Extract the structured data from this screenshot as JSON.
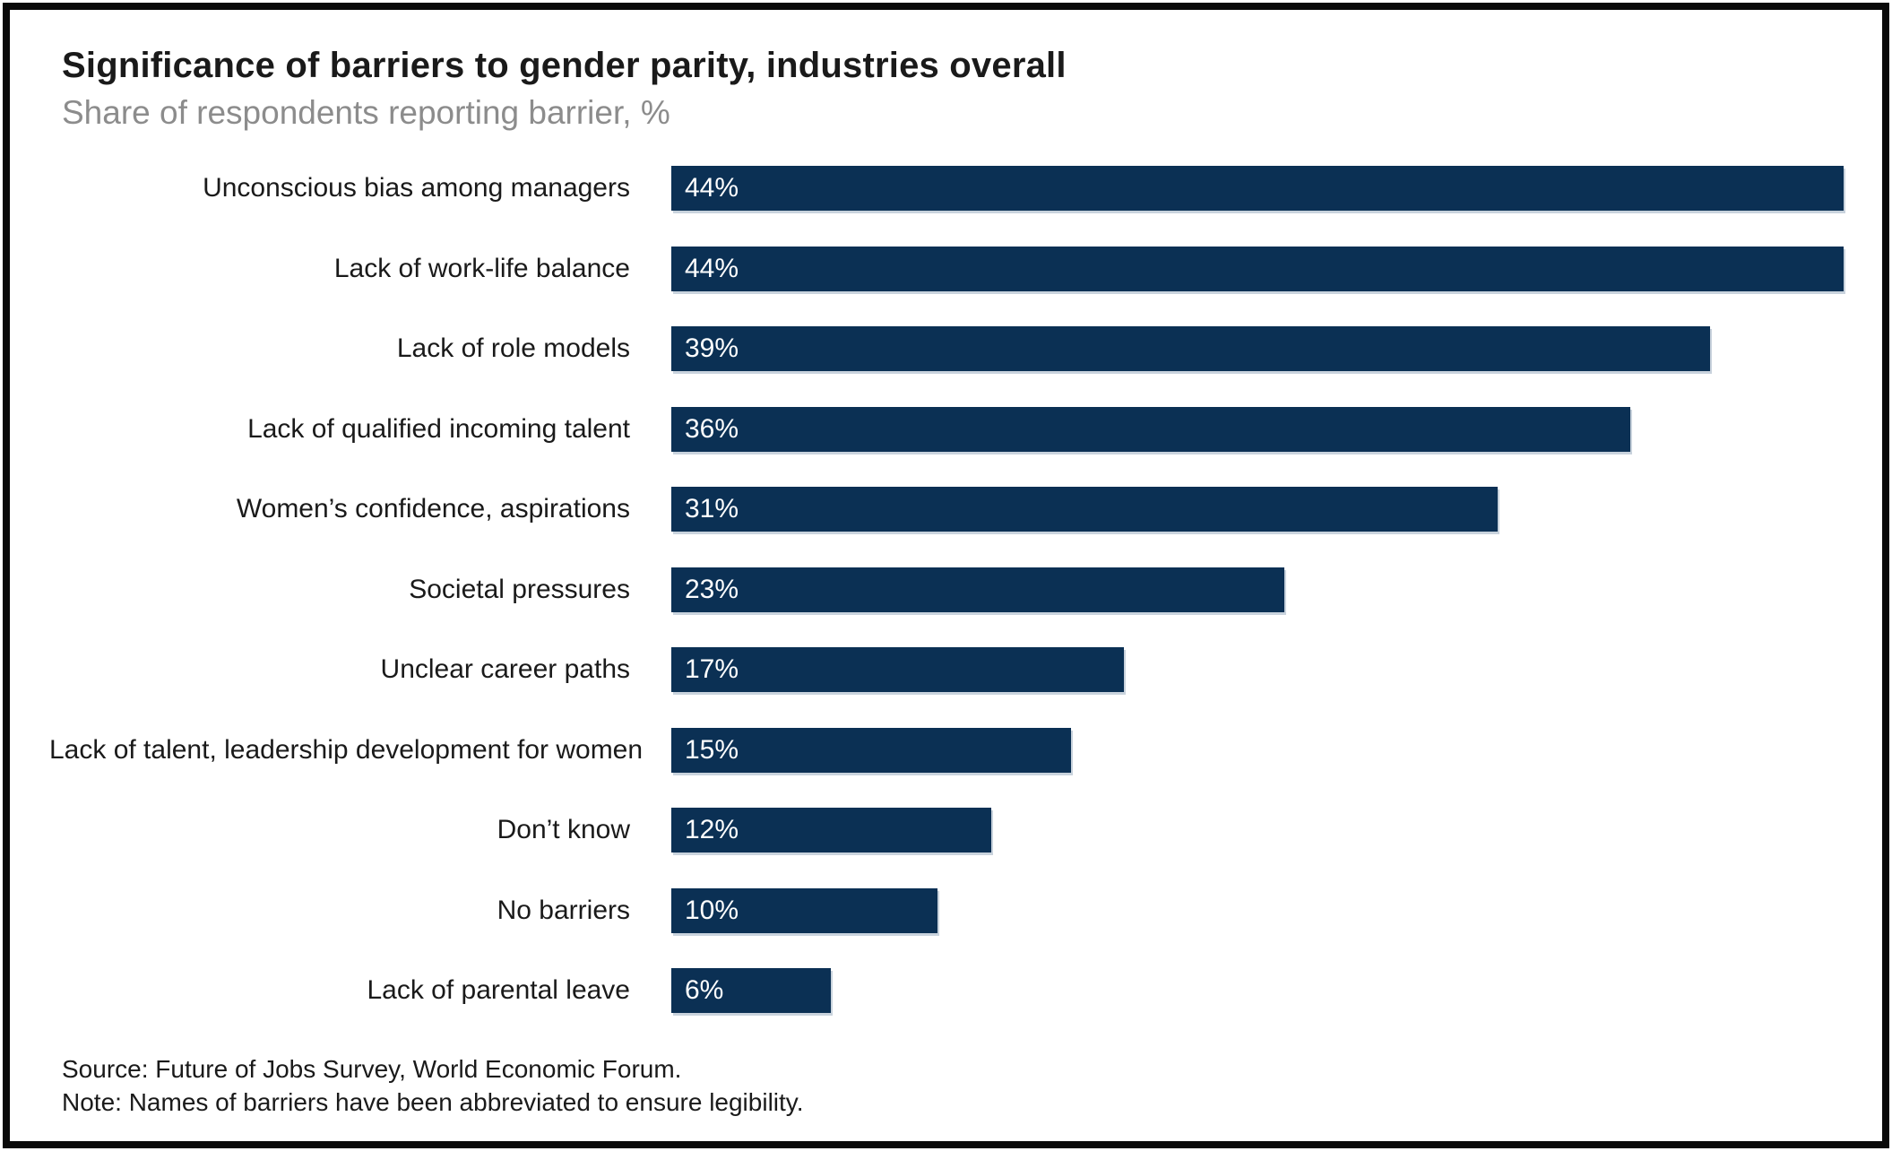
{
  "header": {
    "title": "Significance of barriers to gender parity, industries overall",
    "subtitle": "Share of respondents reporting barrier, %"
  },
  "footer": {
    "source": "Source: Future of Jobs Survey, World Economic Forum.",
    "note": "Note: Names of barriers have been abbreviated to ensure legibility."
  },
  "colors": {
    "bar": "#0b3054",
    "bar_shadow": "#c9d3dd",
    "title_text": "#1a1a1a",
    "subtitle_text": "#8c8c8c",
    "value_text": "#ffffff",
    "frame_border": "#0a0a0a"
  },
  "chart_data": {
    "type": "bar",
    "orientation": "horizontal",
    "title": "Significance of barriers to gender parity, industries overall",
    "subtitle": "Share of respondents reporting barrier, %",
    "xlabel": "",
    "ylabel": "",
    "value_suffix": "%",
    "xlim": [
      0,
      44
    ],
    "grid": false,
    "legend": false,
    "categories": [
      "Unconscious bias among managers",
      "Lack of work-life balance",
      "Lack of role models",
      "Lack of qualified incoming talent",
      "Women’s confidence, aspirations",
      "Societal pressures",
      "Unclear career paths",
      "Lack of talent, leadership development for women",
      "Don’t know",
      "No barriers",
      "Lack of parental leave"
    ],
    "values": [
      44,
      44,
      39,
      36,
      31,
      23,
      17,
      15,
      12,
      10,
      6
    ]
  }
}
